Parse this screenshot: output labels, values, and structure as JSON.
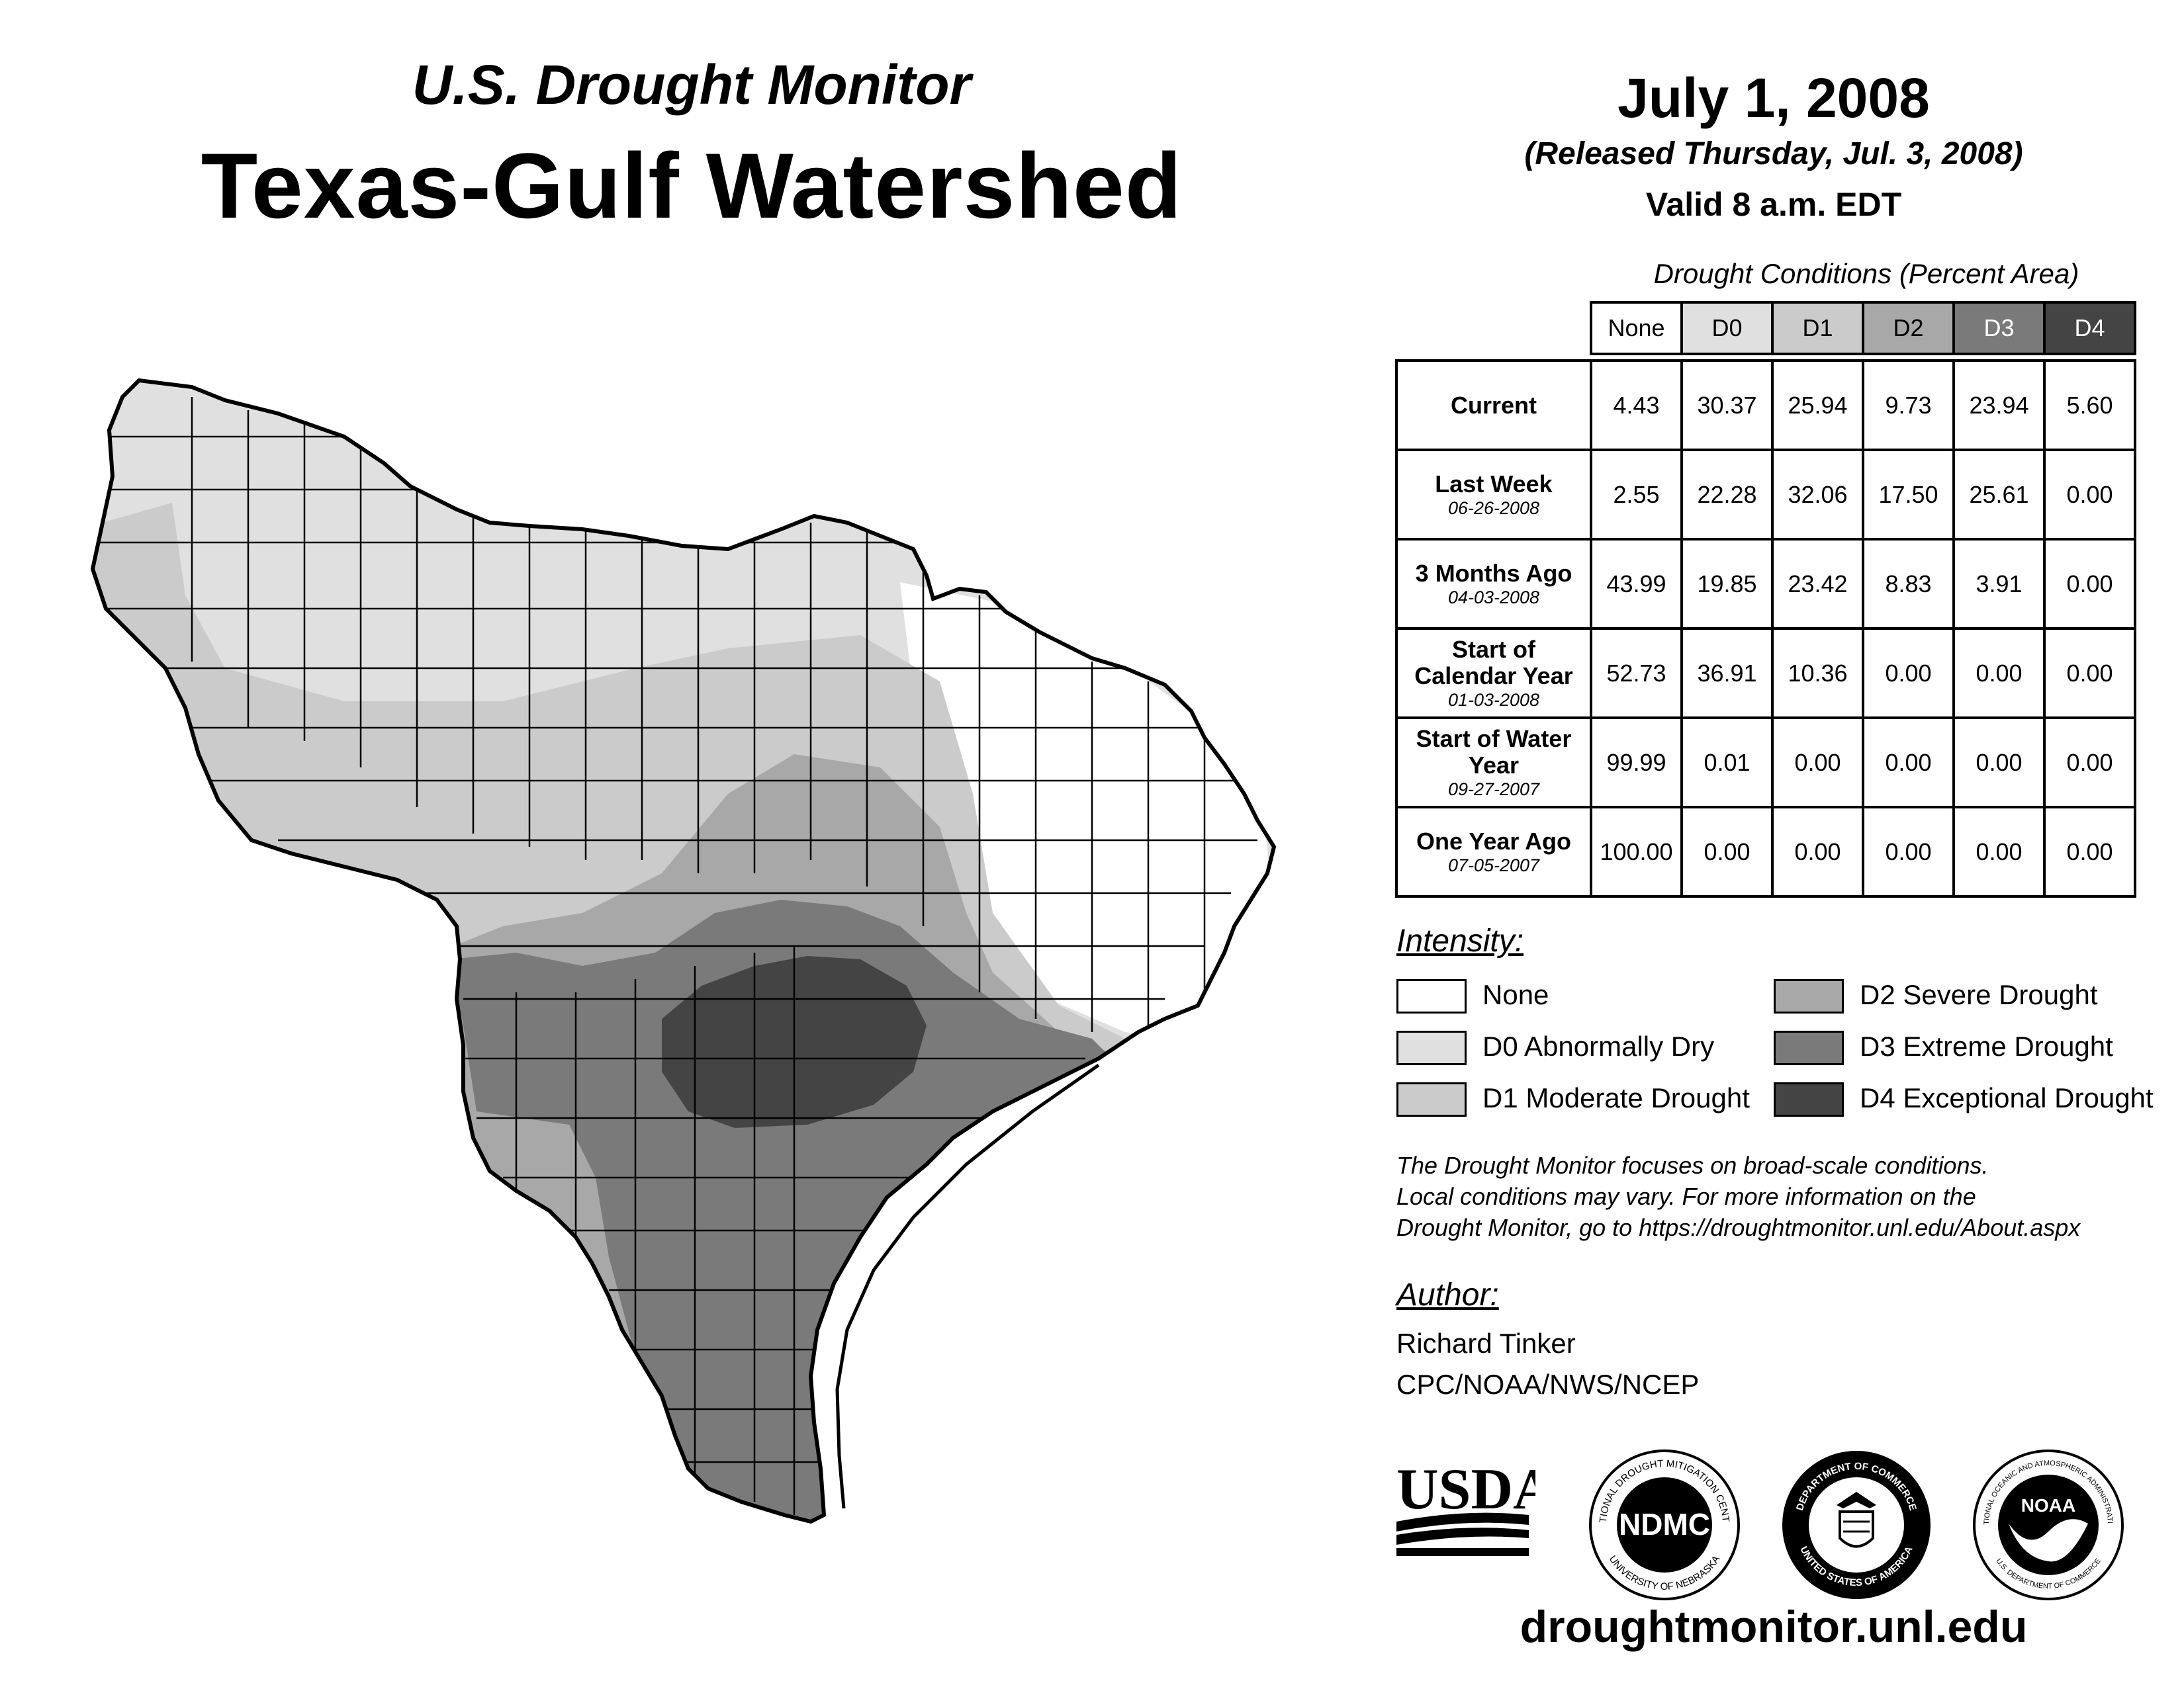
{
  "header": {
    "subtitle": "U.S. Drought Monitor",
    "title": "Texas-Gulf Watershed",
    "date": "July 1, 2008",
    "released": "(Released Thursday, Jul. 3, 2008)",
    "valid": "Valid 8 a.m. EDT"
  },
  "table": {
    "caption": "Drought Conditions (Percent Area)",
    "columns": [
      "None",
      "D0",
      "D1",
      "D2",
      "D3",
      "D4"
    ],
    "rows": [
      {
        "label": "Current",
        "date": "",
        "values": [
          "4.43",
          "30.37",
          "25.94",
          "9.73",
          "23.94",
          "5.60"
        ]
      },
      {
        "label": "Last Week",
        "date": "06-26-2008",
        "values": [
          "2.55",
          "22.28",
          "32.06",
          "17.50",
          "25.61",
          "0.00"
        ]
      },
      {
        "label": "3 Months Ago",
        "date": "04-03-2008",
        "values": [
          "43.99",
          "19.85",
          "23.42",
          "8.83",
          "3.91",
          "0.00"
        ]
      },
      {
        "label": "Start of Calendar Year",
        "date": "01-03-2008",
        "values": [
          "52.73",
          "36.91",
          "10.36",
          "0.00",
          "0.00",
          "0.00"
        ]
      },
      {
        "label": "Start of Water Year",
        "date": "09-27-2007",
        "values": [
          "99.99",
          "0.01",
          "0.00",
          "0.00",
          "0.00",
          "0.00"
        ]
      },
      {
        "label": "One Year Ago",
        "date": "07-05-2007",
        "values": [
          "100.00",
          "0.00",
          "0.00",
          "0.00",
          "0.00",
          "0.00"
        ]
      }
    ]
  },
  "legend": {
    "title": "Intensity:",
    "items": [
      {
        "label": "None",
        "color": "#ffffff"
      },
      {
        "label": "D0 Abnormally Dry",
        "color": "#e0e0e0"
      },
      {
        "label": "D1 Moderate Drought",
        "color": "#cbcbcb"
      },
      {
        "label": "D2 Severe Drought",
        "color": "#a8a8a8"
      },
      {
        "label": "D3 Extreme Drought",
        "color": "#7a7a7a"
      },
      {
        "label": "D4 Exceptional Drought",
        "color": "#444444"
      }
    ]
  },
  "note": {
    "line1": "The Drought Monitor focuses on broad-scale conditions.",
    "line2": "Local conditions may vary. For more information on the",
    "line3": "Drought Monitor, go to https://droughtmonitor.unl.edu/About.aspx"
  },
  "author": {
    "heading": "Author:",
    "name": "Richard Tinker",
    "org": "CPC/NOAA/NWS/NCEP"
  },
  "logos": {
    "usda": "USDA",
    "ndmc": "NDMC",
    "ndmc_ring_top": "NATIONAL DROUGHT MITIGATION CENTER",
    "ndmc_ring_bottom": "UNIVERSITY OF NEBRASKA",
    "doc_ring_top": "DEPARTMENT OF COMMERCE",
    "doc_ring_bottom": "UNITED STATES OF AMERICA",
    "noaa": "NOAA",
    "noaa_ring_top": "NATIONAL OCEANIC AND ATMOSPHERIC ADMINISTRATION",
    "noaa_ring_bottom": "U.S. DEPARTMENT OF COMMERCE"
  },
  "footer": {
    "url": "droughtmonitor.unl.edu"
  }
}
